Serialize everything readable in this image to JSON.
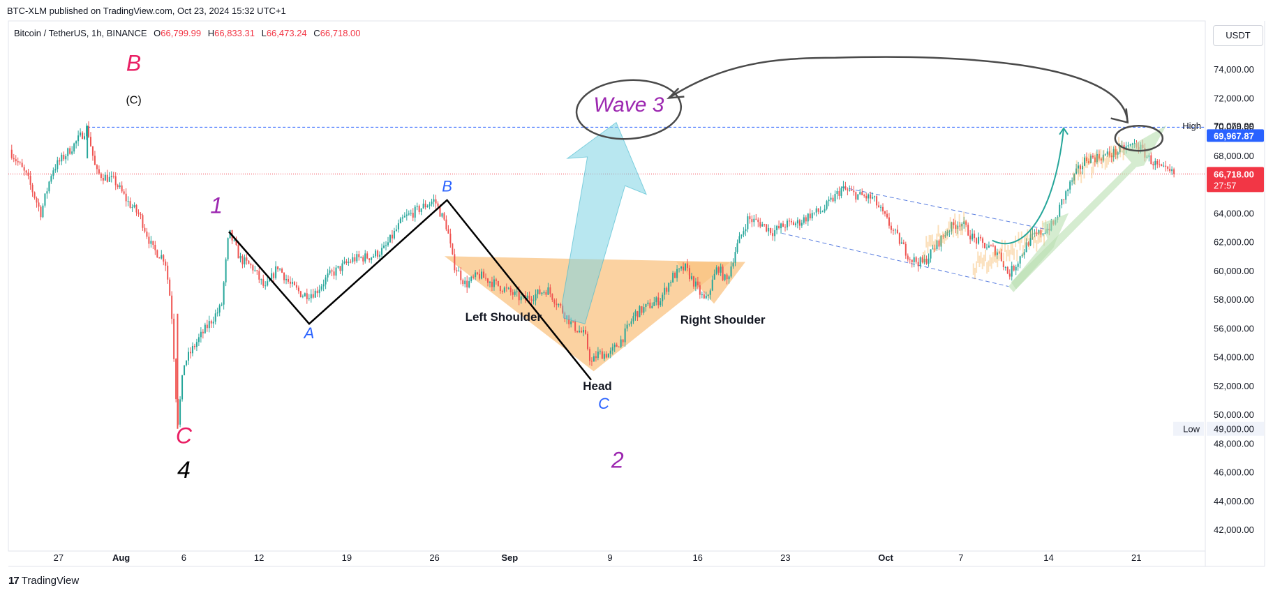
{
  "header": {
    "published": "BTC-XLM published on TradingView.com, Oct 23, 2024 15:32 UTC+1",
    "symbol": "Bitcoin / TetherUS, 1h, BINANCE",
    "ohlc": [
      {
        "label": "O",
        "value": "66,799.99"
      },
      {
        "label": "H",
        "value": "66,833.31"
      },
      {
        "label": "L",
        "value": "66,473.24"
      },
      {
        "label": "C",
        "value": "66,718.00"
      }
    ],
    "unit": "USDT"
  },
  "footer": {
    "brand_mark": "17",
    "brand": "TradingView"
  },
  "colors": {
    "up": "#26a69a",
    "down": "#ef5350",
    "pattern_fill": "#f9c381",
    "wave3_arrow": "#7dd3e3",
    "green_arrow": "#b9dfb0",
    "price_label": "#f23645",
    "high_label": "#2962ff",
    "magenta": "#e91e63",
    "purple": "#9c27b0",
    "blue": "#2962ff"
  },
  "chart_data": {
    "type": "candlestick",
    "interval": "1h",
    "y_axis": {
      "min": 40500,
      "max": 76000,
      "ticks": [
        "42,000.00",
        "44,000.00",
        "46,000.00",
        "48,000.00",
        "50,000.00",
        "52,000.00",
        "54,000.00",
        "56,000.00",
        "58,000.00",
        "60,000.00",
        "62,000.00",
        "64,000.00",
        "66,000.00",
        "68,000.00",
        "70,000.00",
        "72,000.00",
        "74,000.00"
      ]
    },
    "x_axis": {
      "labels": [
        {
          "t": 0,
          "label": "27"
        },
        {
          "t": 5,
          "label": "Aug"
        },
        {
          "t": 10,
          "label": "6"
        },
        {
          "t": 16,
          "label": "12"
        },
        {
          "t": 23,
          "label": "19"
        },
        {
          "t": 30,
          "label": "26"
        },
        {
          "t": 36,
          "label": "Sep"
        },
        {
          "t": 44,
          "label": "9"
        },
        {
          "t": 51,
          "label": "16"
        },
        {
          "t": 58,
          "label": "23"
        },
        {
          "t": 66,
          "label": "Oct"
        },
        {
          "t": 72,
          "label": "7"
        },
        {
          "t": 79,
          "label": "14"
        },
        {
          "t": 86,
          "label": "21"
        }
      ],
      "t_min": -4,
      "t_max": 91.5
    },
    "price_path": [
      [
        -3.9,
        68400
      ],
      [
        -2.5,
        66500
      ],
      [
        -1.4,
        64000
      ],
      [
        -0.5,
        67000
      ],
      [
        1.2,
        68700
      ],
      [
        2.3,
        69950
      ],
      [
        3,
        66800
      ],
      [
        4.5,
        66200
      ],
      [
        5.5,
        64800
      ],
      [
        6.5,
        63800
      ],
      [
        7.5,
        61500
      ],
      [
        8.5,
        60800
      ],
      [
        9,
        57500
      ],
      [
        9.5,
        49200
      ],
      [
        10,
        53500
      ],
      [
        11,
        55000
      ],
      [
        12,
        56300
      ],
      [
        13,
        57500
      ],
      [
        13.6,
        62700
      ],
      [
        14.5,
        60800
      ],
      [
        15.5,
        60200
      ],
      [
        16.5,
        58700
      ],
      [
        17.5,
        60300
      ],
      [
        18.5,
        59000
      ],
      [
        19.5,
        58300
      ],
      [
        20.5,
        58500
      ],
      [
        21.5,
        59600
      ],
      [
        22.5,
        60200
      ],
      [
        23.5,
        60800
      ],
      [
        25,
        61000
      ],
      [
        26,
        61500
      ],
      [
        27.5,
        63600
      ],
      [
        29,
        64400
      ],
      [
        30,
        64900
      ],
      [
        31,
        63000
      ],
      [
        31.5,
        60500
      ],
      [
        32.5,
        59000
      ],
      [
        33.5,
        59700
      ],
      [
        35,
        59000
      ],
      [
        36,
        58500
      ],
      [
        37,
        58000
      ],
      [
        38,
        58300
      ],
      [
        39,
        58700
      ],
      [
        40,
        57500
      ],
      [
        41,
        56200
      ],
      [
        42,
        55500
      ],
      [
        42.5,
        53500
      ],
      [
        43,
        54200
      ],
      [
        44,
        54200
      ],
      [
        45,
        55300
      ],
      [
        46,
        57000
      ],
      [
        47,
        57500
      ],
      [
        48,
        58000
      ],
      [
        49,
        59600
      ],
      [
        50,
        60200
      ],
      [
        50.6,
        59300
      ],
      [
        51.6,
        57800
      ],
      [
        52.6,
        60300
      ],
      [
        53.3,
        59200
      ],
      [
        54,
        61400
      ],
      [
        55,
        63600
      ],
      [
        56,
        63300
      ],
      [
        57,
        62700
      ],
      [
        58,
        63200
      ],
      [
        59,
        63300
      ],
      [
        60,
        63900
      ],
      [
        61,
        64200
      ],
      [
        62.5,
        65700
      ],
      [
        63.5,
        65300
      ],
      [
        65,
        65000
      ],
      [
        66,
        63600
      ],
      [
        67,
        62200
      ],
      [
        68,
        60800
      ],
      [
        69,
        60500
      ],
      [
        70,
        61700
      ],
      [
        71,
        62900
      ],
      [
        72,
        63400
      ],
      [
        73,
        62200
      ],
      [
        74,
        61700
      ],
      [
        75,
        61300
      ],
      [
        75.8,
        59700
      ],
      [
        76.5,
        60600
      ],
      [
        77.5,
        62200
      ],
      [
        78.5,
        62700
      ],
      [
        79.5,
        63300
      ],
      [
        80,
        64700
      ],
      [
        81,
        66500
      ],
      [
        82,
        67800
      ],
      [
        83,
        67900
      ],
      [
        84,
        68100
      ],
      [
        85,
        68500
      ],
      [
        86,
        68800
      ],
      [
        87,
        67800
      ],
      [
        88,
        67000
      ],
      [
        89,
        66718
      ]
    ],
    "last_price": "66,718.00",
    "last_price_value": 66718,
    "countdown": "27:57",
    "high": {
      "label": "High",
      "value": "70,079.99",
      "level": 70079.99
    },
    "highlight_level": {
      "value": "69,967.87",
      "level": 69967.87
    },
    "low": {
      "label": "Low",
      "value": "49,000.00",
      "level": 49000
    },
    "annotations": {
      "waves_magenta": [
        {
          "text": "B",
          "t": 6.0,
          "price": 73900
        },
        {
          "text": "C",
          "t": 10.0,
          "price": 48000
        }
      ],
      "paren_c": {
        "text": "(C)",
        "t": 6.0,
        "price": 71600
      },
      "wave4": {
        "text": "4",
        "t": 10.0,
        "price": 45600
      },
      "waves_purple": [
        {
          "text": "1",
          "t": 12.6,
          "price": 64000
        },
        {
          "text": "2",
          "t": 44.6,
          "price": 46300
        }
      ],
      "waves_blue": [
        {
          "text": "A",
          "t": 20.0,
          "price": 55300
        },
        {
          "text": "B",
          "t": 31.0,
          "price": 65500
        },
        {
          "text": "C",
          "t": 43.5,
          "price": 50400
        }
      ],
      "pattern_labels": [
        {
          "text": "Left Shoulder",
          "t": 35.5,
          "price": 56500
        },
        {
          "text": "Head",
          "t": 43.0,
          "price": 51700
        },
        {
          "text": "Right Shoulder",
          "t": 53.0,
          "price": 56300
        }
      ],
      "zigzag": [
        [
          13.6,
          62700
        ],
        [
          20.0,
          56300
        ],
        [
          31.0,
          64900
        ],
        [
          42.5,
          52400
        ]
      ],
      "wave3_text": "Wave 3",
      "wave3_position": {
        "t": 45.5,
        "price": 71050
      }
    }
  }
}
